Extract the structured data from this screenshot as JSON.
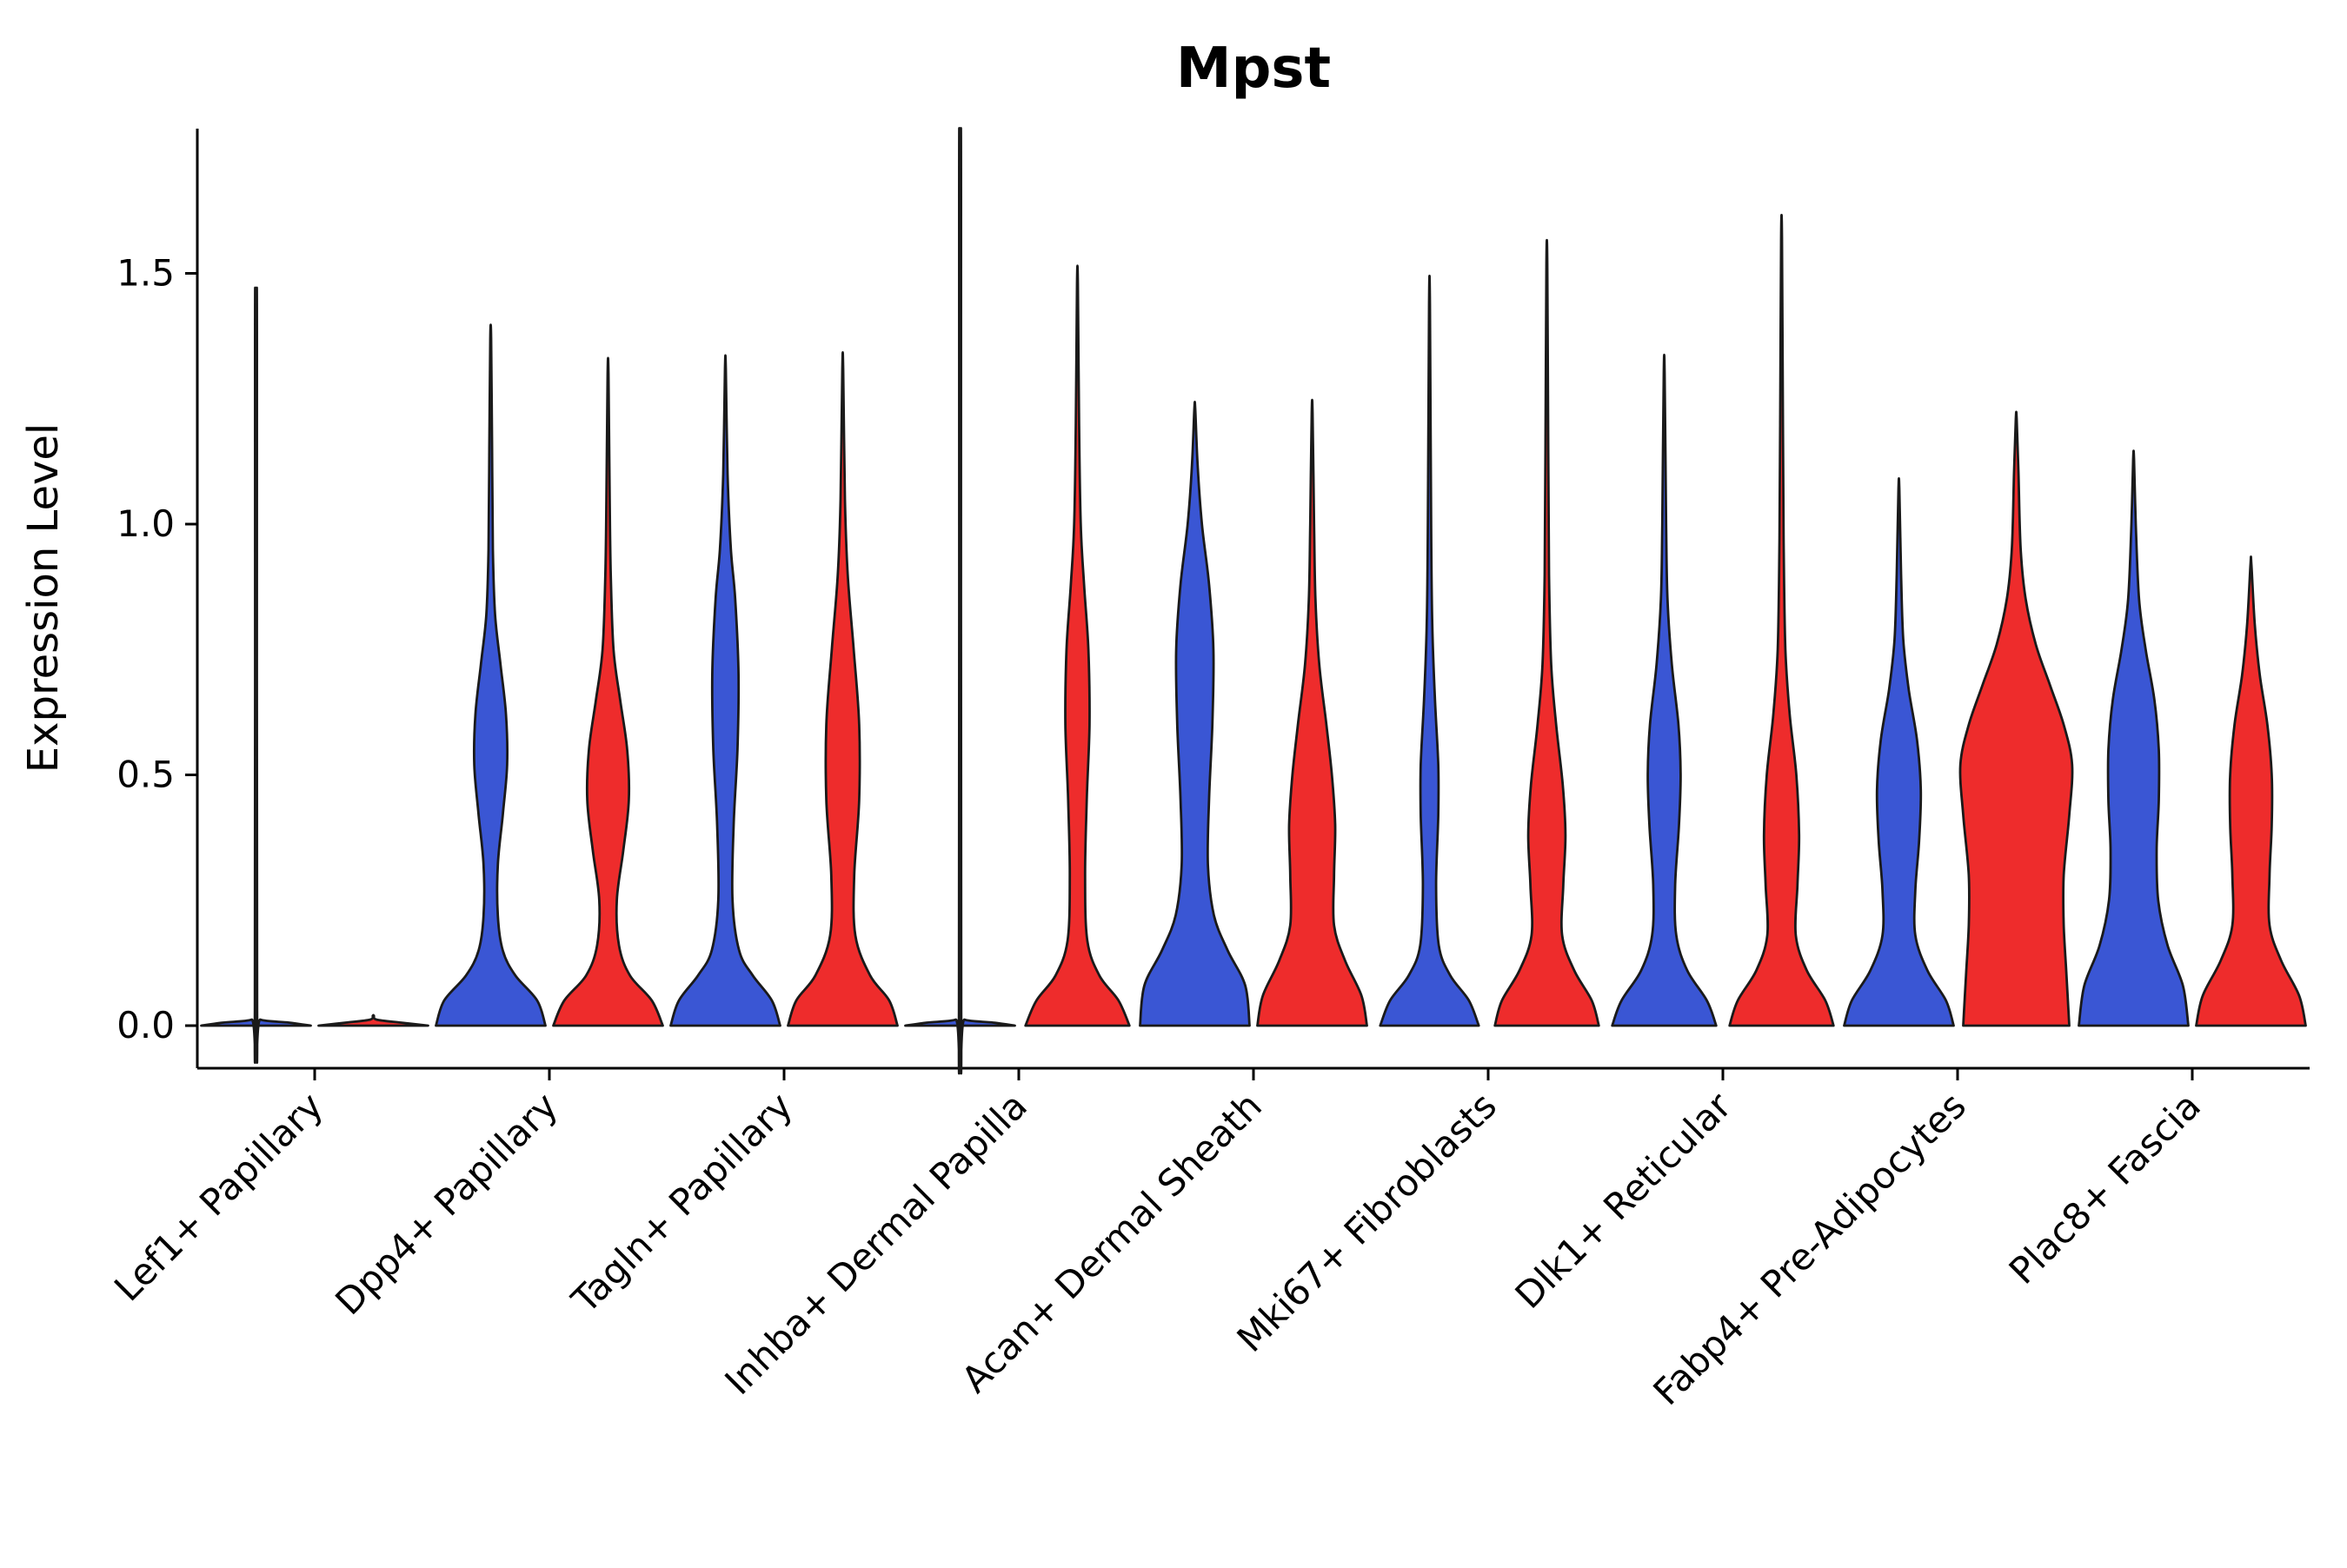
{
  "chart_data": {
    "type": "violin",
    "title": "Mpst",
    "xlabel": "",
    "ylabel": "Expression Level",
    "ylim": [
      -0.08,
      1.78
    ],
    "yticks": [
      0.0,
      0.5,
      1.0,
      1.5
    ],
    "ytick_labels": [
      "0.0",
      "0.5",
      "1.0",
      "1.5"
    ],
    "grid": false,
    "legend": "none",
    "split_colors": {
      "left": "#3A56D4",
      "right": "#EE2C2C"
    },
    "outline_color": "#1a1a1a",
    "categories": [
      "Lef1+ Papillary",
      "Dpp4+ Papillary",
      "Tagln+ Papillary",
      "Inhba+ Dermal Papilla",
      "Acan+ Dermal Sheath",
      "Mki67+ Fibroblasts",
      "Dlk1+ Reticular",
      "Fabp4+ Pre-Adipocytes",
      "Plac8+ Fascia"
    ],
    "violins": [
      {
        "category": "Lef1+ Papillary",
        "left": {
          "peak": 1.4,
          "max_width": 1.0,
          "profile": [
            [
              0,
              1.0
            ],
            [
              0.006,
              0.6
            ],
            [
              0.012,
              0.08
            ],
            [
              0.03,
              0.02
            ],
            [
              1.36,
              0.018
            ],
            [
              1.4,
              0.008
            ]
          ]
        },
        "right": {
          "peak": 0.02,
          "max_width": 1.0,
          "profile": [
            [
              0,
              1.0
            ],
            [
              0.006,
              0.5
            ],
            [
              0.012,
              0.06
            ],
            [
              0.02,
              0.01
            ]
          ]
        }
      },
      {
        "category": "Dpp4+ Papillary",
        "left": {
          "peak": 1.37,
          "max_width": 1.0,
          "profile": [
            [
              0,
              1.0
            ],
            [
              0.05,
              0.85
            ],
            [
              0.1,
              0.45
            ],
            [
              0.15,
              0.22
            ],
            [
              0.22,
              0.13
            ],
            [
              0.32,
              0.13
            ],
            [
              0.42,
              0.22
            ],
            [
              0.52,
              0.3
            ],
            [
              0.62,
              0.28
            ],
            [
              0.72,
              0.18
            ],
            [
              0.82,
              0.08
            ],
            [
              0.95,
              0.04
            ],
            [
              1.15,
              0.025
            ],
            [
              1.37,
              0.008
            ]
          ]
        },
        "right": {
          "peak": 1.3,
          "max_width": 1.0,
          "profile": [
            [
              0,
              1.0
            ],
            [
              0.05,
              0.8
            ],
            [
              0.1,
              0.4
            ],
            [
              0.16,
              0.2
            ],
            [
              0.25,
              0.16
            ],
            [
              0.35,
              0.28
            ],
            [
              0.45,
              0.38
            ],
            [
              0.55,
              0.35
            ],
            [
              0.65,
              0.22
            ],
            [
              0.75,
              0.1
            ],
            [
              0.9,
              0.05
            ],
            [
              1.05,
              0.03
            ],
            [
              1.3,
              0.008
            ]
          ]
        }
      },
      {
        "category": "Tagln+ Papillary",
        "left": {
          "peak": 1.31,
          "max_width": 1.0,
          "profile": [
            [
              0,
              1.0
            ],
            [
              0.05,
              0.85
            ],
            [
              0.1,
              0.5
            ],
            [
              0.15,
              0.25
            ],
            [
              0.25,
              0.13
            ],
            [
              0.4,
              0.15
            ],
            [
              0.55,
              0.22
            ],
            [
              0.7,
              0.24
            ],
            [
              0.85,
              0.18
            ],
            [
              0.95,
              0.1
            ],
            [
              1.1,
              0.04
            ],
            [
              1.31,
              0.008
            ]
          ]
        },
        "right": {
          "peak": 1.31,
          "max_width": 1.0,
          "profile": [
            [
              0,
              1.0
            ],
            [
              0.05,
              0.85
            ],
            [
              0.1,
              0.5
            ],
            [
              0.18,
              0.23
            ],
            [
              0.3,
              0.21
            ],
            [
              0.45,
              0.3
            ],
            [
              0.6,
              0.3
            ],
            [
              0.75,
              0.2
            ],
            [
              0.9,
              0.09
            ],
            [
              1.05,
              0.04
            ],
            [
              1.31,
              0.008
            ]
          ]
        }
      },
      {
        "category": "Inhba+ Dermal Papilla",
        "left": {
          "peak": 1.71,
          "max_width": 1.0,
          "profile": [
            [
              0,
              1.0
            ],
            [
              0.006,
              0.6
            ],
            [
              0.012,
              0.08
            ],
            [
              0.03,
              0.02
            ],
            [
              1.65,
              0.018
            ],
            [
              1.71,
              0.008
            ]
          ]
        },
        "right": {
          "peak": 1.48,
          "max_width": 1.0,
          "profile": [
            [
              0,
              0.95
            ],
            [
              0.05,
              0.75
            ],
            [
              0.1,
              0.4
            ],
            [
              0.17,
              0.18
            ],
            [
              0.3,
              0.14
            ],
            [
              0.45,
              0.17
            ],
            [
              0.6,
              0.22
            ],
            [
              0.75,
              0.2
            ],
            [
              0.88,
              0.12
            ],
            [
              1.0,
              0.06
            ],
            [
              1.2,
              0.03
            ],
            [
              1.48,
              0.008
            ]
          ]
        }
      },
      {
        "category": "Acan+ Dermal Sheath",
        "left": {
          "peak": 1.23,
          "max_width": 1.0,
          "profile": [
            [
              0,
              1.0
            ],
            [
              0.08,
              0.92
            ],
            [
              0.15,
              0.6
            ],
            [
              0.22,
              0.35
            ],
            [
              0.32,
              0.24
            ],
            [
              0.45,
              0.26
            ],
            [
              0.6,
              0.32
            ],
            [
              0.75,
              0.34
            ],
            [
              0.88,
              0.26
            ],
            [
              1.0,
              0.13
            ],
            [
              1.12,
              0.05
            ],
            [
              1.23,
              0.008
            ]
          ]
        },
        "right": {
          "peak": 1.22,
          "max_width": 1.0,
          "profile": [
            [
              0,
              1.0
            ],
            [
              0.06,
              0.9
            ],
            [
              0.13,
              0.6
            ],
            [
              0.2,
              0.4
            ],
            [
              0.3,
              0.4
            ],
            [
              0.4,
              0.42
            ],
            [
              0.5,
              0.36
            ],
            [
              0.6,
              0.26
            ],
            [
              0.72,
              0.13
            ],
            [
              0.85,
              0.06
            ],
            [
              1.0,
              0.035
            ],
            [
              1.22,
              0.008
            ]
          ]
        }
      },
      {
        "category": "Mki67+ Fibroblasts",
        "left": {
          "peak": 1.44,
          "max_width": 1.0,
          "profile": [
            [
              0,
              0.9
            ],
            [
              0.05,
              0.72
            ],
            [
              0.1,
              0.38
            ],
            [
              0.16,
              0.17
            ],
            [
              0.28,
              0.12
            ],
            [
              0.42,
              0.16
            ],
            [
              0.52,
              0.16
            ],
            [
              0.65,
              0.1
            ],
            [
              0.8,
              0.05
            ],
            [
              1.0,
              0.03
            ],
            [
              1.44,
              0.008
            ]
          ]
        },
        "right": {
          "peak": 1.52,
          "max_width": 1.0,
          "profile": [
            [
              0,
              0.95
            ],
            [
              0.05,
              0.82
            ],
            [
              0.11,
              0.5
            ],
            [
              0.18,
              0.28
            ],
            [
              0.28,
              0.3
            ],
            [
              0.38,
              0.34
            ],
            [
              0.48,
              0.29
            ],
            [
              0.6,
              0.17
            ],
            [
              0.72,
              0.08
            ],
            [
              0.9,
              0.04
            ],
            [
              1.15,
              0.025
            ],
            [
              1.52,
              0.008
            ]
          ]
        }
      },
      {
        "category": "Dlk1+ Reticular",
        "left": {
          "peak": 1.3,
          "max_width": 1.0,
          "profile": [
            [
              0,
              0.95
            ],
            [
              0.05,
              0.78
            ],
            [
              0.11,
              0.42
            ],
            [
              0.18,
              0.22
            ],
            [
              0.28,
              0.2
            ],
            [
              0.4,
              0.27
            ],
            [
              0.5,
              0.3
            ],
            [
              0.6,
              0.26
            ],
            [
              0.72,
              0.14
            ],
            [
              0.85,
              0.06
            ],
            [
              1.0,
              0.035
            ],
            [
              1.3,
              0.008
            ]
          ]
        },
        "right": {
          "peak": 1.57,
          "max_width": 1.0,
          "profile": [
            [
              0,
              0.95
            ],
            [
              0.05,
              0.8
            ],
            [
              0.11,
              0.46
            ],
            [
              0.18,
              0.26
            ],
            [
              0.28,
              0.29
            ],
            [
              0.38,
              0.32
            ],
            [
              0.5,
              0.27
            ],
            [
              0.62,
              0.15
            ],
            [
              0.75,
              0.07
            ],
            [
              0.95,
              0.04
            ],
            [
              1.2,
              0.025
            ],
            [
              1.57,
              0.008
            ]
          ]
        }
      },
      {
        "category": "Fabp4+ Pre-Adipocytes",
        "left": {
          "peak": 1.07,
          "max_width": 1.0,
          "profile": [
            [
              0,
              1.0
            ],
            [
              0.05,
              0.86
            ],
            [
              0.11,
              0.52
            ],
            [
              0.18,
              0.3
            ],
            [
              0.27,
              0.3
            ],
            [
              0.37,
              0.37
            ],
            [
              0.47,
              0.4
            ],
            [
              0.57,
              0.33
            ],
            [
              0.67,
              0.18
            ],
            [
              0.77,
              0.08
            ],
            [
              0.9,
              0.04
            ],
            [
              1.07,
              0.008
            ]
          ]
        },
        "right": {
          "peak": 1.21,
          "max_width": 1.02,
          "profile": [
            [
              0,
              0.95
            ],
            [
              0.1,
              0.9
            ],
            [
              0.2,
              0.85
            ],
            [
              0.3,
              0.85
            ],
            [
              0.42,
              0.95
            ],
            [
              0.52,
              1.0
            ],
            [
              0.6,
              0.85
            ],
            [
              0.68,
              0.6
            ],
            [
              0.76,
              0.35
            ],
            [
              0.85,
              0.17
            ],
            [
              0.95,
              0.08
            ],
            [
              1.1,
              0.04
            ],
            [
              1.21,
              0.008
            ]
          ]
        }
      },
      {
        "category": "Plac8+ Fascia",
        "left": {
          "peak": 1.13,
          "max_width": 1.0,
          "profile": [
            [
              0,
              1.0
            ],
            [
              0.08,
              0.9
            ],
            [
              0.16,
              0.62
            ],
            [
              0.25,
              0.45
            ],
            [
              0.35,
              0.42
            ],
            [
              0.45,
              0.46
            ],
            [
              0.55,
              0.46
            ],
            [
              0.65,
              0.38
            ],
            [
              0.75,
              0.22
            ],
            [
              0.85,
              0.1
            ],
            [
              1.0,
              0.04
            ],
            [
              1.13,
              0.008
            ]
          ]
        },
        "right": {
          "peak": 0.92,
          "max_width": 1.0,
          "profile": [
            [
              0,
              1.0
            ],
            [
              0.06,
              0.88
            ],
            [
              0.13,
              0.55
            ],
            [
              0.2,
              0.34
            ],
            [
              0.3,
              0.34
            ],
            [
              0.4,
              0.38
            ],
            [
              0.5,
              0.38
            ],
            [
              0.6,
              0.3
            ],
            [
              0.7,
              0.16
            ],
            [
              0.8,
              0.07
            ],
            [
              0.92,
              0.008
            ]
          ]
        }
      }
    ]
  }
}
